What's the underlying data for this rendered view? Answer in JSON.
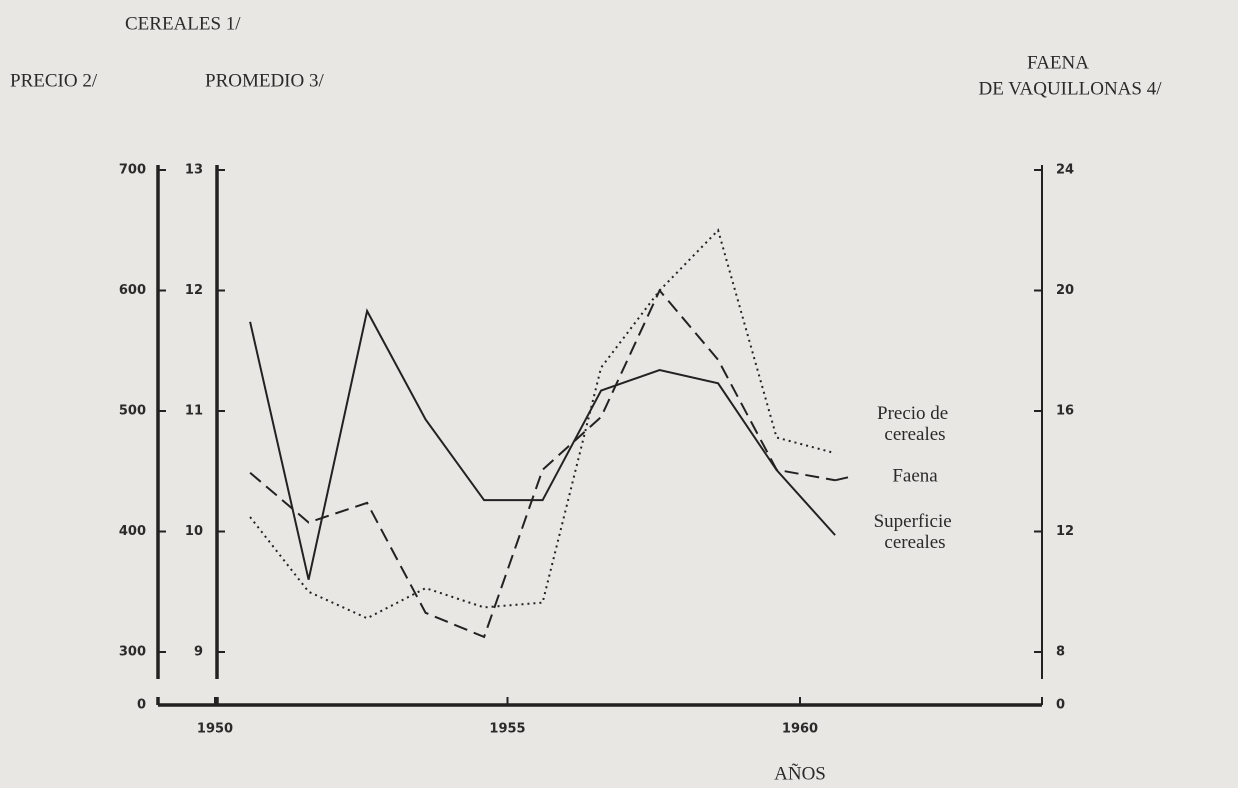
{
  "chart_data": {
    "type": "line",
    "title": "CEREALES 1/",
    "ylabel": "PRECIO 2/",
    "y3label": "PROMEDIO 3/",
    "y2label": [
      "FAENA",
      "DE VAQUILLONAS 4/"
    ],
    "xlabel": "AÑOS",
    "x": [
      1950.6,
      1951.6,
      1952.6,
      1953.6,
      1954.6,
      1955.6,
      1956.6,
      1957.6,
      1958.6,
      1959.6,
      1960.6
    ],
    "xlim": [
      1948.4,
      1965
    ],
    "xticks": [
      1950,
      1955,
      1960
    ],
    "ylim": [
      300,
      700
    ],
    "yticks": [
      0,
      300,
      400,
      500,
      600,
      700
    ],
    "y3lim": [
      9,
      13
    ],
    "y3ticks": [
      9,
      10,
      11,
      12,
      13
    ],
    "y2lim": [
      8,
      24
    ],
    "y2ticks": [
      0,
      8,
      12,
      16,
      20,
      24
    ],
    "axis_break": true,
    "series": [
      {
        "name": "Precio de cereales",
        "axis": "y",
        "color": "#222222",
        "dash": "dotted",
        "values": [
          412,
          350,
          328,
          353,
          337,
          341,
          536,
          600,
          650,
          478,
          465
        ]
      },
      {
        "name": "Faena",
        "axis": "y2",
        "color": "#222222",
        "dash": "dashed",
        "values": [
          13.95,
          12.3,
          12.95,
          9.3,
          8.5,
          14.05,
          15.8,
          20.0,
          17.7,
          14.05,
          13.7
        ]
      },
      {
        "name": "Superficie cereales",
        "axis": "y3",
        "color": "#222222",
        "dash": "solid",
        "values": [
          11.74,
          9.6,
          11.83,
          10.93,
          10.26,
          10.26,
          11.17,
          11.34,
          11.23,
          10.51,
          9.97
        ]
      }
    ]
  }
}
